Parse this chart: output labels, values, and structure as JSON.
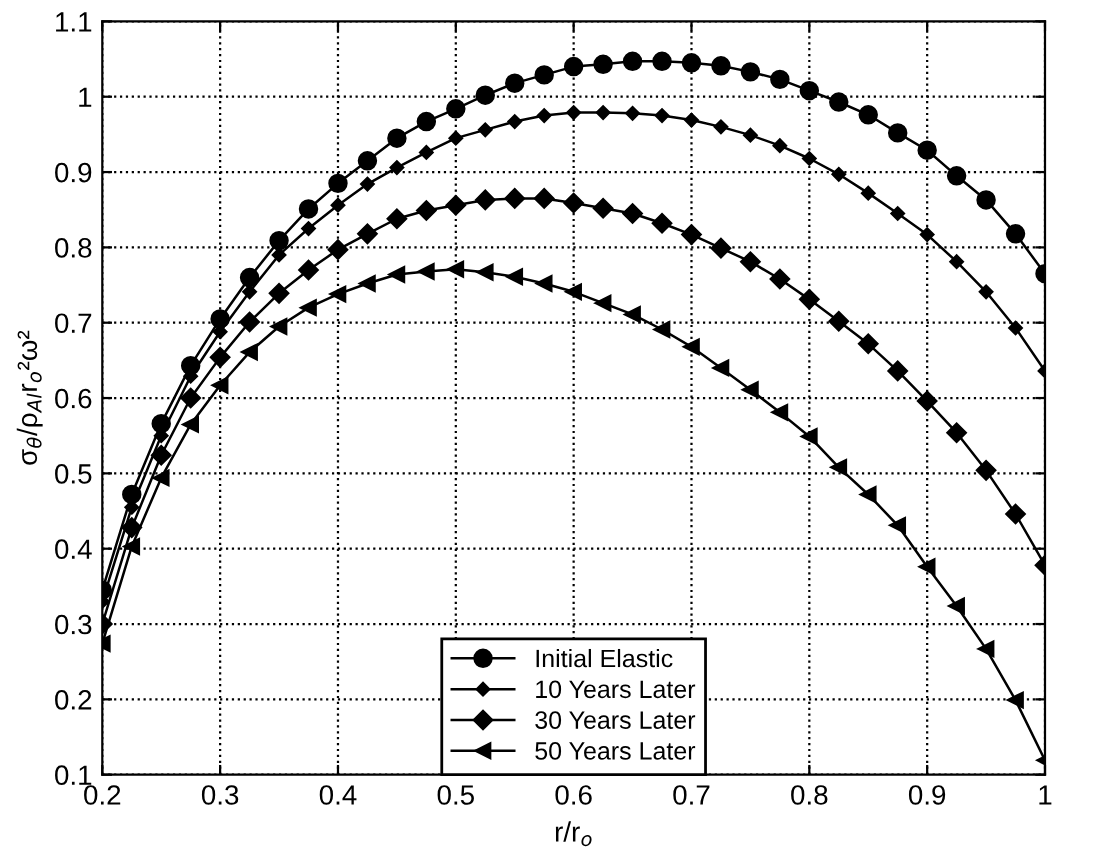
{
  "chart_data": {
    "type": "line",
    "xlabel": "r/r$_{o}$",
    "ylabel": "σ$_{θ}$/ρ$_{Al}$r$_{o}$²ω²",
    "x": [
      0.2,
      0.225,
      0.25,
      0.275,
      0.3,
      0.325,
      0.35,
      0.375,
      0.4,
      0.425,
      0.45,
      0.475,
      0.5,
      0.525,
      0.55,
      0.575,
      0.6,
      0.625,
      0.65,
      0.675,
      0.7,
      0.725,
      0.75,
      0.775,
      0.8,
      0.825,
      0.85,
      0.875,
      0.9,
      0.925,
      0.95,
      0.975,
      1.0
    ],
    "series": [
      {
        "name": "Initial Elastic",
        "color": "#000000",
        "marker": "circle",
        "values": [
          0.345,
          0.472,
          0.566,
          0.643,
          0.705,
          0.76,
          0.809,
          0.851,
          0.885,
          0.915,
          0.945,
          0.967,
          0.984,
          1.002,
          1.018,
          1.029,
          1.04,
          1.043,
          1.047,
          1.047,
          1.045,
          1.041,
          1.033,
          1.023,
          1.008,
          0.993,
          0.976,
          0.952,
          0.929,
          0.895,
          0.863,
          0.818,
          0.765
        ]
      },
      {
        "name": "10 Years Later",
        "color": "#000000",
        "marker": "diamond",
        "values": [
          0.33,
          0.455,
          0.55,
          0.629,
          0.688,
          0.741,
          0.79,
          0.825,
          0.856,
          0.884,
          0.906,
          0.926,
          0.945,
          0.956,
          0.967,
          0.975,
          0.979,
          0.979,
          0.978,
          0.975,
          0.969,
          0.96,
          0.949,
          0.935,
          0.918,
          0.897,
          0.872,
          0.845,
          0.817,
          0.781,
          0.741,
          0.693,
          0.636
        ]
      },
      {
        "name": "30 Years Later",
        "color": "#000000",
        "marker": "diamond",
        "values": [
          0.3,
          0.428,
          0.524,
          0.6,
          0.654,
          0.701,
          0.739,
          0.77,
          0.797,
          0.818,
          0.838,
          0.849,
          0.856,
          0.863,
          0.865,
          0.865,
          0.859,
          0.852,
          0.845,
          0.832,
          0.817,
          0.799,
          0.781,
          0.758,
          0.731,
          0.702,
          0.672,
          0.636,
          0.596,
          0.554,
          0.504,
          0.446,
          0.378
        ]
      },
      {
        "name": "50 Years Later",
        "color": "#000000",
        "marker": "triangle",
        "values": [
          0.274,
          0.403,
          0.494,
          0.565,
          0.617,
          0.661,
          0.695,
          0.72,
          0.738,
          0.752,
          0.764,
          0.768,
          0.771,
          0.767,
          0.761,
          0.752,
          0.741,
          0.726,
          0.711,
          0.691,
          0.668,
          0.64,
          0.611,
          0.581,
          0.549,
          0.508,
          0.472,
          0.431,
          0.376,
          0.324,
          0.267,
          0.199,
          0.119
        ]
      }
    ],
    "xlim": [
      0.2,
      1
    ],
    "xticks": [
      0.2,
      0.3,
      0.4,
      0.5,
      0.6,
      0.7,
      0.8,
      0.9,
      1
    ],
    "ylim": [
      0.1,
      1.1
    ],
    "yticks": [
      0.1,
      0.2,
      0.3,
      0.4,
      0.5,
      0.6,
      0.7,
      0.8,
      0.9,
      1,
      1.1
    ],
    "grid": true,
    "legend": "bottom",
    "line_style": "solid"
  }
}
